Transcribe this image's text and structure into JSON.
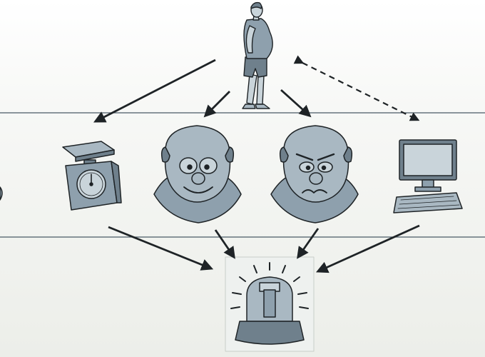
{
  "diagram": {
    "nodes": [
      {
        "id": "person",
        "icon": "overweight-person-icon"
      },
      {
        "id": "scale",
        "icon": "kitchen-scale-icon"
      },
      {
        "id": "happy-face",
        "icon": "smiling-man-face-icon"
      },
      {
        "id": "worried-face",
        "icon": "frowning-man-face-icon"
      },
      {
        "id": "computer",
        "icon": "desktop-computer-icon"
      },
      {
        "id": "alarm",
        "icon": "alarm-beacon-icon"
      }
    ],
    "edges": [
      {
        "from": "person",
        "to": "scale",
        "style": "solid"
      },
      {
        "from": "person",
        "to": "happy-face",
        "style": "solid"
      },
      {
        "from": "person",
        "to": "worried-face",
        "style": "solid"
      },
      {
        "from": "person",
        "to": "computer",
        "style": "dashed-bidirectional"
      },
      {
        "from": "scale",
        "to": "alarm",
        "style": "solid"
      },
      {
        "from": "happy-face",
        "to": "alarm",
        "style": "solid"
      },
      {
        "from": "worried-face",
        "to": "alarm",
        "style": "solid"
      },
      {
        "from": "computer",
        "to": "alarm",
        "style": "solid"
      }
    ],
    "colors": {
      "ink": "#1e2326",
      "figure_fill": "#8ea0ad",
      "band_line": "#4a5a66"
    }
  }
}
